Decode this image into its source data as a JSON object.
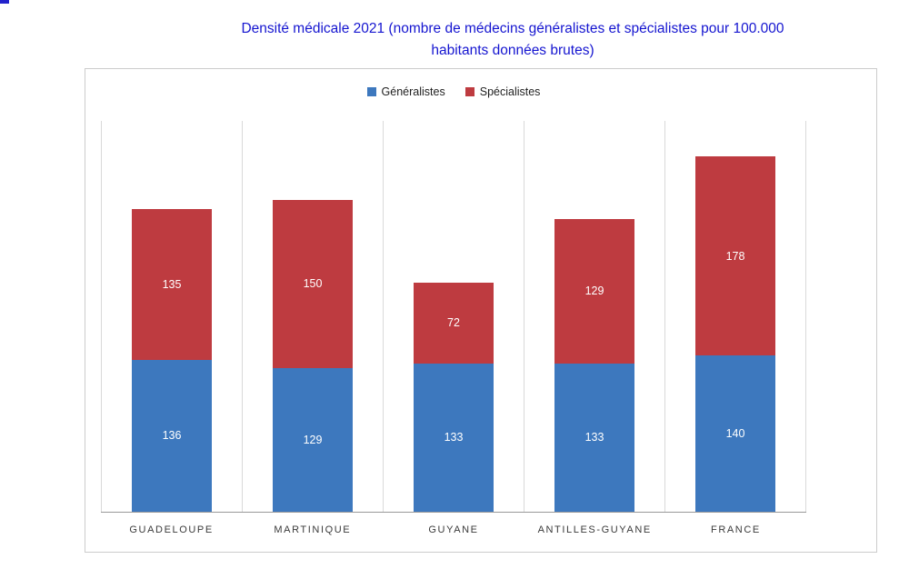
{
  "title": {
    "line1": "Densité médicale 2021 (nombre de médecins généralistes et spécialistes pour 100.000",
    "line2": "habitants données brutes)",
    "color": "#1515d0"
  },
  "chart_data": {
    "type": "bar",
    "stacked": true,
    "title": "Densité médicale 2021 (nombre de médecins généralistes et spécialistes pour 100.000 habitants données brutes)",
    "categories": [
      "GUADELOUPE",
      "MARTINIQUE",
      "GUYANE",
      "ANTILLES-GUYANE",
      "FRANCE"
    ],
    "series": [
      {
        "name": "Généralistes",
        "color": "#3d78be",
        "values": [
          136,
          129,
          133,
          133,
          140
        ]
      },
      {
        "name": "Spécialistes",
        "color": "#be3b40",
        "values": [
          135,
          150,
          72,
          129,
          178
        ]
      }
    ],
    "totals": [
      271,
      279,
      205,
      262,
      318
    ],
    "xlabel": "",
    "ylabel": "",
    "ylim": [
      0,
      350
    ],
    "legend_position": "top-center",
    "grid": "vertical-band-separators",
    "data_labels": "inside-segment-white"
  }
}
